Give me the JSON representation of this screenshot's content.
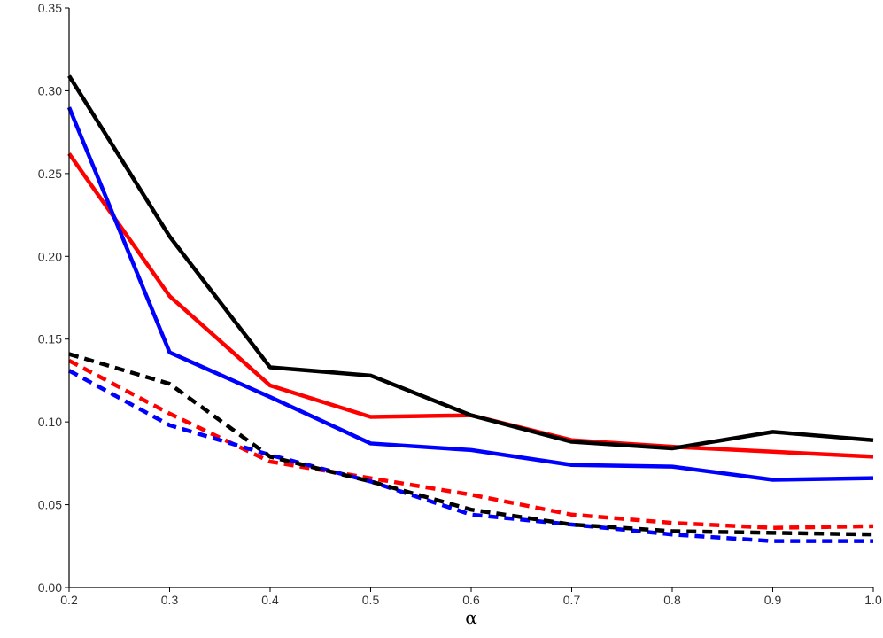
{
  "chart_data": {
    "type": "line",
    "xlabel": "α",
    "ylabel": "",
    "xlim": [
      0.2,
      1.0
    ],
    "ylim": [
      0.0,
      0.35
    ],
    "x_ticks": [
      "0.2",
      "0.3",
      "0.4",
      "0.5",
      "0.6",
      "0.7",
      "0.8",
      "0.9",
      "1.0"
    ],
    "y_ticks": [
      "0.00",
      "0.05",
      "0.10",
      "0.15",
      "0.20",
      "0.25",
      "0.30",
      "0.35"
    ],
    "grid": false,
    "x": [
      0.2,
      0.3,
      0.4,
      0.5,
      0.6,
      0.7,
      0.8,
      0.9,
      1.0
    ],
    "series": [
      {
        "color": "#ff0000",
        "dash": "solid",
        "values": [
          0.262,
          0.176,
          0.122,
          0.103,
          0.104,
          0.089,
          0.085,
          0.082,
          0.079
        ]
      },
      {
        "color": "#0000ff",
        "dash": "solid",
        "values": [
          0.29,
          0.142,
          0.115,
          0.087,
          0.083,
          0.074,
          0.073,
          0.065,
          0.066
        ]
      },
      {
        "color": "#000000",
        "dash": "solid",
        "values": [
          0.309,
          0.212,
          0.133,
          0.128,
          0.104,
          0.088,
          0.084,
          0.094,
          0.089
        ]
      },
      {
        "color": "#ff0000",
        "dash": "dashed",
        "values": [
          0.137,
          0.105,
          0.076,
          0.066,
          0.056,
          0.044,
          0.039,
          0.036,
          0.037
        ]
      },
      {
        "color": "#0000ff",
        "dash": "dashed",
        "values": [
          0.131,
          0.098,
          0.08,
          0.064,
          0.044,
          0.038,
          0.032,
          0.028,
          0.028
        ]
      },
      {
        "color": "#000000",
        "dash": "dashed",
        "values": [
          0.141,
          0.123,
          0.079,
          0.064,
          0.047,
          0.038,
          0.034,
          0.033,
          0.032
        ]
      }
    ]
  }
}
